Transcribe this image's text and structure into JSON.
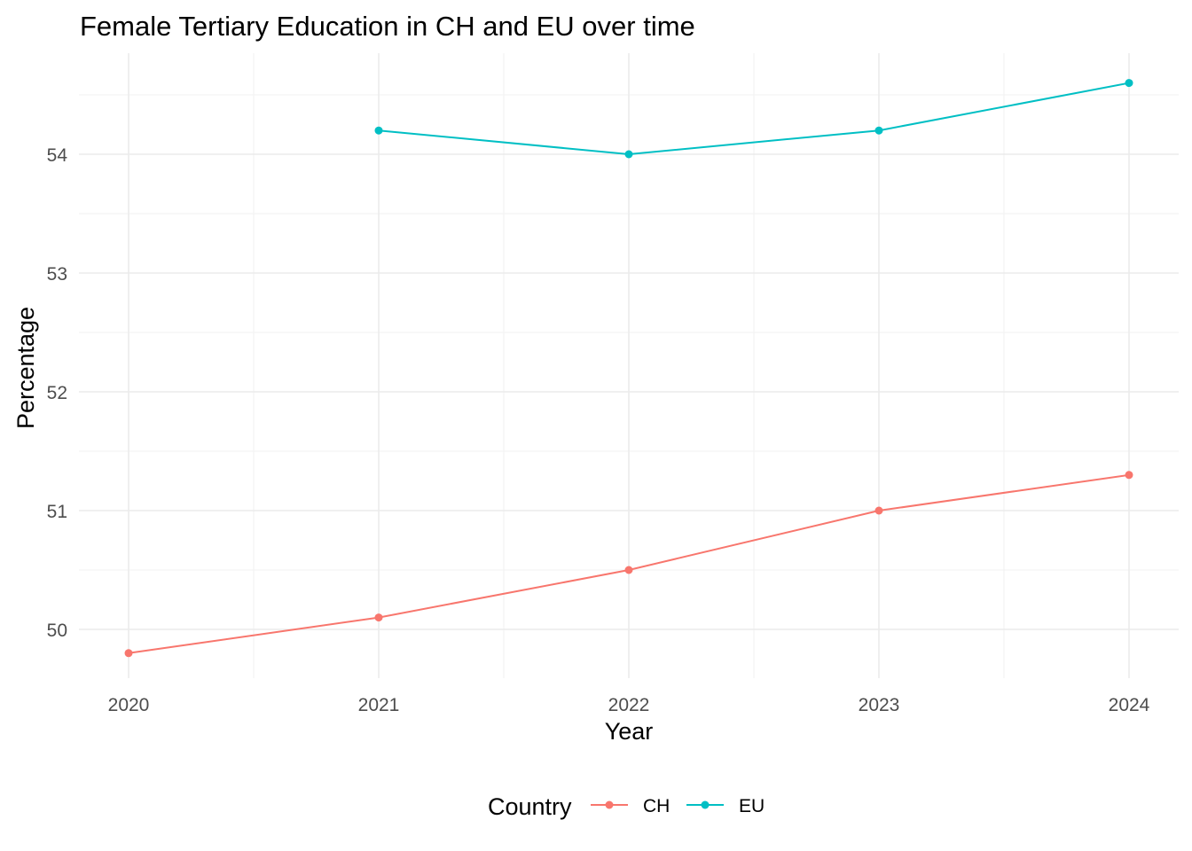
{
  "chart_data": {
    "type": "line",
    "title": "Female Tertiary Education in CH and EU over time",
    "xlabel": "Year",
    "ylabel": "Percentage",
    "x_ticks": [
      "2020",
      "2021",
      "2022",
      "2023",
      "2024"
    ],
    "y_ticks": [
      "50",
      "51",
      "52",
      "53",
      "54"
    ],
    "xlim": [
      2019.8,
      2024.2
    ],
    "ylim": [
      49.6,
      54.8
    ],
    "grid": true,
    "legend": {
      "title": "Country",
      "position": "bottom"
    },
    "series": [
      {
        "name": "CH",
        "color": "#F8766D",
        "x": [
          2020,
          2021,
          2022,
          2023,
          2024
        ],
        "y": [
          49.8,
          50.1,
          50.5,
          51.0,
          51.3
        ]
      },
      {
        "name": "EU",
        "color": "#00BFC4",
        "x": [
          2021,
          2022,
          2023,
          2024
        ],
        "y": [
          54.2,
          54.0,
          54.2,
          54.6
        ]
      }
    ]
  }
}
